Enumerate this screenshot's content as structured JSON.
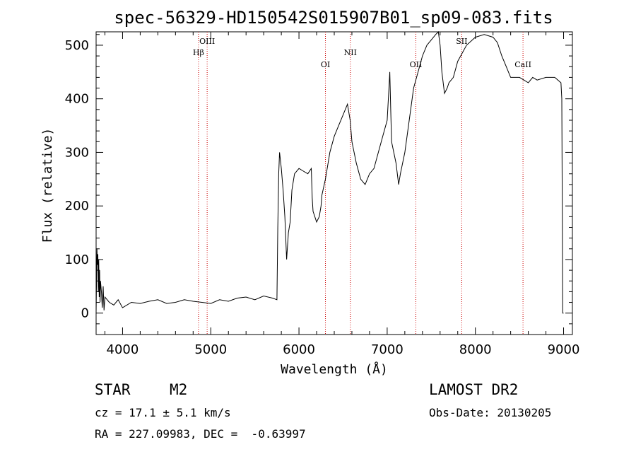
{
  "chart_data": {
    "type": "line",
    "title": "spec-56329-HD150542S015907B01_sp09-083.fits",
    "xlabel": "Wavelength (Å)",
    "ylabel": "Flux (relative)",
    "xlim": [
      3700,
      9100
    ],
    "ylim": [
      -40,
      525
    ],
    "xticks": [
      4000,
      5000,
      6000,
      7000,
      8000,
      9000
    ],
    "yticks": [
      0,
      100,
      200,
      300,
      400,
      500
    ],
    "grid": false,
    "spectral_lines": [
      {
        "label": "Hβ",
        "x": 4861
      },
      {
        "label": "OIII",
        "x": 4959
      },
      {
        "label": "OI",
        "x": 6300
      },
      {
        "label": "NII",
        "x": 6583
      },
      {
        "label": "OII",
        "x": 7325
      },
      {
        "label": "SII",
        "x": 7845
      },
      {
        "label": "CaII",
        "x": 8540
      }
    ],
    "series": [
      {
        "x": [
          3700,
          3710,
          3715,
          3720,
          3725,
          3730,
          3735,
          3740,
          3745,
          3750,
          3760,
          3770,
          3780,
          3790,
          3800,
          3850,
          3900,
          3950,
          4000,
          4100,
          4200,
          4300,
          4400,
          4500,
          4600,
          4700,
          4800,
          4900,
          5000,
          5100,
          5200,
          5300,
          5400,
          5500,
          5600,
          5700,
          5750,
          5760,
          5770,
          5780,
          5800,
          5820,
          5840,
          5860,
          5880,
          5900,
          5920,
          5950,
          6000,
          6050,
          6100,
          6140,
          6150,
          6160,
          6200,
          6230,
          6250,
          6260,
          6300,
          6350,
          6400,
          6450,
          6500,
          6550,
          6580,
          6600,
          6650,
          6700,
          6750,
          6800,
          6850,
          6900,
          6950,
          7000,
          7020,
          7030,
          7040,
          7050,
          7100,
          7130,
          7150,
          7200,
          7250,
          7300,
          7350,
          7400,
          7450,
          7500,
          7550,
          7580,
          7600,
          7620,
          7650,
          7680,
          7700,
          7750,
          7800,
          7900,
          8000,
          8100,
          8200,
          8250,
          8300,
          8350,
          8400,
          8450,
          8500,
          8550,
          8600,
          8650,
          8700,
          8800,
          8900,
          8970,
          8980,
          8990,
          9000
        ],
        "values": [
          0,
          120,
          90,
          110,
          40,
          100,
          30,
          80,
          20,
          60,
          40,
          10,
          50,
          5,
          30,
          20,
          15,
          25,
          10,
          20,
          18,
          22,
          25,
          18,
          20,
          25,
          22,
          20,
          18,
          25,
          22,
          28,
          30,
          25,
          32,
          28,
          25,
          160,
          260,
          300,
          270,
          230,
          180,
          100,
          150,
          170,
          230,
          260,
          270,
          265,
          260,
          270,
          215,
          190,
          170,
          180,
          200,
          220,
          250,
          300,
          330,
          350,
          370,
          390,
          360,
          320,
          280,
          250,
          240,
          260,
          270,
          300,
          330,
          360,
          420,
          450,
          380,
          320,
          280,
          240,
          260,
          300,
          360,
          420,
          450,
          480,
          500,
          510,
          520,
          525,
          500,
          450,
          410,
          420,
          430,
          440,
          470,
          500,
          515,
          520,
          515,
          505,
          480,
          460,
          440,
          440,
          440,
          435,
          430,
          440,
          435,
          440,
          440,
          430,
          400,
          0,
          0
        ]
      }
    ],
    "info": {
      "object_class": "STAR",
      "subclass": "M2",
      "survey": "LAMOST DR2",
      "cz": "cz = 17.1 ± 5.1 km/s",
      "obs_date": "Obs-Date: 20130205",
      "radec": "RA = 227.09983, DEC =  -0.63997"
    }
  }
}
